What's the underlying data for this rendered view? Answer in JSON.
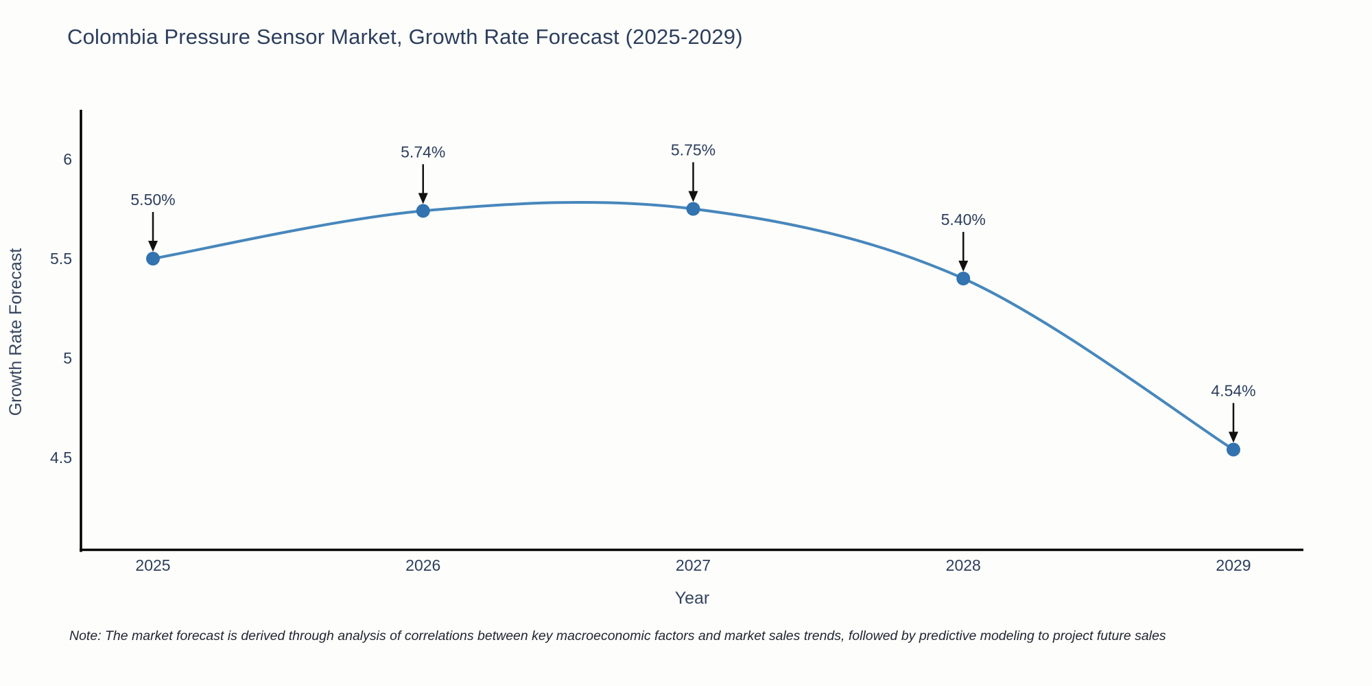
{
  "chart": {
    "note": "Note: The market forecast is derived through analysis of correlations between key macroeconomic factors and market sales trends, followed by predictive modeling to project future sales"
  },
  "chart_data": {
    "type": "line",
    "line_shape": "spline",
    "title": "Colombia Pressure Sensor Market, Growth Rate Forecast (2025-2029)",
    "xlabel": "Year",
    "ylabel": "Growth Rate Forecast",
    "categories": [
      "2025",
      "2026",
      "2027",
      "2028",
      "2029"
    ],
    "values": [
      5.5,
      5.74,
      5.75,
      5.4,
      4.54
    ],
    "point_labels": [
      "5.50%",
      "5.74%",
      "5.75%",
      "5.40%",
      "4.54%"
    ],
    "y_ticks": {
      "labels": [
        "6",
        "5.5",
        "5",
        "4.5"
      ],
      "values": [
        6,
        5.5,
        5,
        4.5
      ]
    },
    "ylim": [
      4.05,
      6.25
    ],
    "grid": false,
    "legend": false,
    "annotations_style": "value-label-with-down-arrow",
    "colors": {
      "line": "#4787bc",
      "marker": "#3273b0",
      "text": "#2c3e5d",
      "axis": "#000000",
      "arrow": "#111111",
      "background": "#fdfdfb"
    }
  }
}
